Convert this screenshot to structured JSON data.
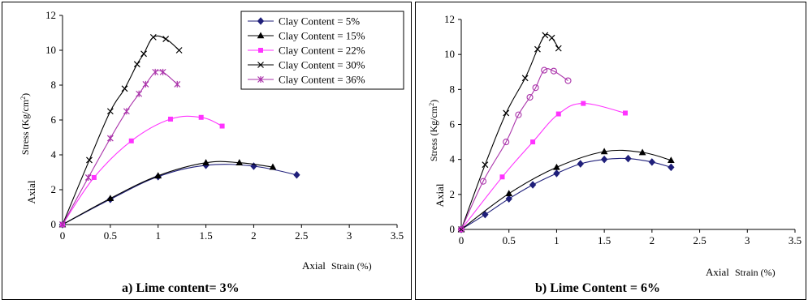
{
  "chart_data": [
    {
      "type": "line",
      "caption": "a) Lime content= 3%",
      "xlabel": "Strain (%)",
      "xlabel_overlap": "Axial",
      "ylabel": "Stress (Kg/cm",
      "ylabel_sup": "2",
      "ylabel_suffix": ")",
      "ylabel_overlap": "Axial",
      "xlim": [
        0,
        3.5
      ],
      "ylim": [
        0,
        12
      ],
      "xticks": [
        "0",
        "0.5",
        "1",
        "1.5",
        "2",
        "2.5",
        "3",
        "3.5"
      ],
      "yticks": [
        "0",
        "2",
        "4",
        "6",
        "8",
        "10",
        "12"
      ],
      "grid": false,
      "legend_position": "top-right",
      "series": [
        {
          "name": "Clay Content = 5%",
          "color": "#1f1f7a",
          "marker": "diamond",
          "x": [
            0,
            0.5,
            1.0,
            1.5,
            2.0,
            2.45
          ],
          "y": [
            0,
            1.45,
            2.75,
            3.4,
            3.35,
            2.85
          ]
        },
        {
          "name": "Clay Content = 15%",
          "color": "#000000",
          "marker": "triangle",
          "x": [
            0,
            0.5,
            1.0,
            1.5,
            1.85,
            2.2
          ],
          "y": [
            0,
            1.5,
            2.8,
            3.55,
            3.55,
            3.3
          ]
        },
        {
          "name": "Clay Content = 22%",
          "color": "#ff33ff",
          "marker": "square",
          "x": [
            0,
            0.33,
            0.72,
            1.13,
            1.45,
            1.67
          ],
          "y": [
            0,
            2.7,
            4.8,
            6.05,
            6.15,
            5.65
          ]
        },
        {
          "name": "Clay Content = 30%",
          "color": "#000000",
          "marker": "x",
          "x": [
            0,
            0.28,
            0.5,
            0.65,
            0.78,
            0.85,
            0.95,
            1.08,
            1.22
          ],
          "y": [
            0,
            3.7,
            6.5,
            7.8,
            9.2,
            9.8,
            10.75,
            10.65,
            10.0
          ]
        },
        {
          "name": "Clay Content = 36%",
          "color": "#aa33aa",
          "marker": "star",
          "x": [
            0,
            0.27,
            0.5,
            0.67,
            0.8,
            0.87,
            0.97,
            1.05,
            1.2
          ],
          "y": [
            0,
            2.7,
            4.95,
            6.5,
            7.5,
            8.05,
            8.75,
            8.75,
            8.05
          ]
        }
      ]
    },
    {
      "type": "line",
      "caption": "b) Lime Content = 6%",
      "xlabel": "Strain (%)",
      "xlabel_overlap": "Axial",
      "ylabel": "Stress (Kg/cm",
      "ylabel_sup": "2",
      "ylabel_suffix": ")",
      "ylabel_overlap": "Axial",
      "xlim": [
        0,
        3.5
      ],
      "ylim": [
        0,
        12
      ],
      "xticks": [
        "0",
        "0.5",
        "1",
        "1.5",
        "2",
        "2.5",
        "3",
        "3.5"
      ],
      "yticks": [
        "0",
        "2",
        "4",
        "6",
        "8",
        "10",
        "12"
      ],
      "grid": false,
      "series": [
        {
          "color": "#1f1f7a",
          "marker": "diamond",
          "x": [
            0,
            0.25,
            0.5,
            0.75,
            1.0,
            1.25,
            1.5,
            1.75,
            2.0,
            2.2
          ],
          "y": [
            0,
            0.85,
            1.75,
            2.55,
            3.2,
            3.75,
            4.0,
            4.05,
            3.85,
            3.55
          ]
        },
        {
          "color": "#000000",
          "marker": "triangle",
          "x": [
            0,
            0.5,
            1.0,
            1.5,
            1.9,
            2.2
          ],
          "y": [
            0,
            2.05,
            3.55,
            4.45,
            4.4,
            3.95
          ]
        },
        {
          "color": "#ff33ff",
          "marker": "square",
          "x": [
            0,
            0.43,
            0.75,
            1.02,
            1.28,
            1.72
          ],
          "y": [
            0,
            3.0,
            5.0,
            6.6,
            7.2,
            6.65
          ]
        },
        {
          "color": "#000000",
          "marker": "x",
          "x": [
            0,
            0.25,
            0.47,
            0.67,
            0.8,
            0.88,
            0.95,
            1.02
          ],
          "y": [
            0,
            3.7,
            6.65,
            8.65,
            10.3,
            11.1,
            10.95,
            10.35
          ]
        },
        {
          "color": "#aa33aa",
          "marker": "circle",
          "x": [
            0,
            0.23,
            0.47,
            0.6,
            0.72,
            0.78,
            0.87,
            0.97,
            1.12
          ],
          "y": [
            0,
            2.75,
            5.0,
            6.55,
            7.55,
            8.1,
            9.1,
            9.05,
            8.5
          ]
        }
      ]
    }
  ]
}
